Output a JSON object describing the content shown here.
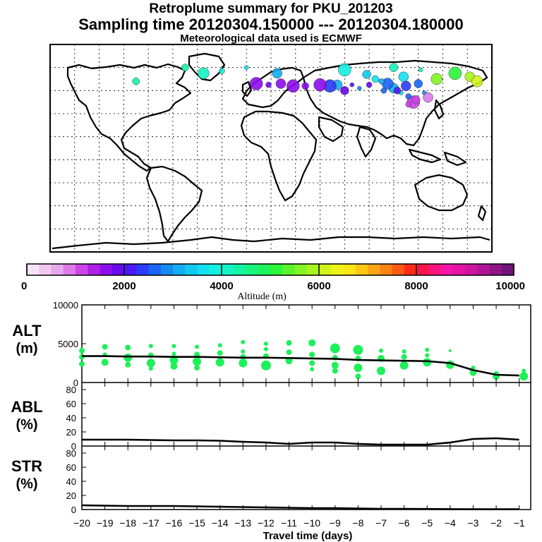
{
  "header": {
    "title": "Retroplume summary for PKU_201203",
    "sampling": "Sampling time   20120304.150000 --- 20120304.180000",
    "met": "Meteorological data used is ECMWF"
  },
  "colorbar": {
    "label": "Altitude (m)",
    "ticks": [
      "0",
      "2000",
      "4000",
      "6000",
      "8000",
      "10000"
    ],
    "range": [
      0,
      10000
    ],
    "colors": [
      "#f7e3f7",
      "#f0c8f0",
      "#e8a8ee",
      "#de7ae8",
      "#cc44e6",
      "#b01ee8",
      "#8c0eec",
      "#6a08f0",
      "#4a18f4",
      "#2a3cf6",
      "#1a64f6",
      "#148af2",
      "#12acf0",
      "#10c8f0",
      "#12e0ee",
      "#14f0e0",
      "#14f4c4",
      "#14f4a4",
      "#16f47c",
      "#1af45a",
      "#2cf43a",
      "#5af42c",
      "#82f424",
      "#aaf41e",
      "#d0f41a",
      "#eef416",
      "#fce614",
      "#fcc814",
      "#fca614",
      "#fc8214",
      "#fc5a14",
      "#fc2c18",
      "#fc1448",
      "#fc147c",
      "#f414a8",
      "#e414a8",
      "#cc14a0",
      "#b01498",
      "#901488",
      "#701478"
    ]
  },
  "chart_data": [
    {
      "type": "scatter",
      "name": "ALT",
      "ylabel": "ALT\n(m)",
      "ylabel_lines": [
        "ALT",
        "(m)"
      ],
      "ylim": [
        0,
        10000
      ],
      "yticks": [
        "10000",
        "5000",
        "0"
      ],
      "xlim": [
        -20,
        -0.5
      ],
      "median_line": {
        "x": [
          -20,
          -19,
          -18,
          -17,
          -16,
          -15,
          -14,
          -13,
          -12,
          -11,
          -10,
          -9,
          -8,
          -7,
          -6,
          -5,
          -4,
          -3,
          -2,
          -1
        ],
        "y": [
          3400,
          3400,
          3350,
          3350,
          3300,
          3300,
          3250,
          3200,
          3200,
          3150,
          3100,
          3050,
          2900,
          2850,
          2800,
          2750,
          2500,
          1600,
          1000,
          900
        ]
      },
      "points": [
        {
          "x": -20,
          "y": 4100,
          "r": 4
        },
        {
          "x": -20,
          "y": 3300,
          "r": 4
        },
        {
          "x": -20,
          "y": 2400,
          "r": 4
        },
        {
          "x": -19,
          "y": 4600,
          "r": 4
        },
        {
          "x": -19,
          "y": 3600,
          "r": 3
        },
        {
          "x": -19,
          "y": 2600,
          "r": 5
        },
        {
          "x": -18,
          "y": 4500,
          "r": 4
        },
        {
          "x": -18,
          "y": 3200,
          "r": 6
        },
        {
          "x": -18,
          "y": 2300,
          "r": 4
        },
        {
          "x": -17,
          "y": 4700,
          "r": 3
        },
        {
          "x": -17,
          "y": 3500,
          "r": 4
        },
        {
          "x": -17,
          "y": 2500,
          "r": 6
        },
        {
          "x": -17,
          "y": 1800,
          "r": 3
        },
        {
          "x": -16,
          "y": 4700,
          "r": 3
        },
        {
          "x": -16,
          "y": 3700,
          "r": 3
        },
        {
          "x": -16,
          "y": 2900,
          "r": 6
        },
        {
          "x": -16,
          "y": 2100,
          "r": 5
        },
        {
          "x": -15,
          "y": 4600,
          "r": 3
        },
        {
          "x": -15,
          "y": 3600,
          "r": 4
        },
        {
          "x": -15,
          "y": 2700,
          "r": 6
        },
        {
          "x": -15,
          "y": 1900,
          "r": 4
        },
        {
          "x": -14,
          "y": 4800,
          "r": 3
        },
        {
          "x": -14,
          "y": 3800,
          "r": 4
        },
        {
          "x": -14,
          "y": 2600,
          "r": 6
        },
        {
          "x": -13,
          "y": 5200,
          "r": 3
        },
        {
          "x": -13,
          "y": 4000,
          "r": 3
        },
        {
          "x": -13,
          "y": 3300,
          "r": 4
        },
        {
          "x": -13,
          "y": 2500,
          "r": 6
        },
        {
          "x": -12,
          "y": 5000,
          "r": 3
        },
        {
          "x": -12,
          "y": 4300,
          "r": 3
        },
        {
          "x": -12,
          "y": 3400,
          "r": 4
        },
        {
          "x": -12,
          "y": 2200,
          "r": 7
        },
        {
          "x": -11,
          "y": 5100,
          "r": 4
        },
        {
          "x": -11,
          "y": 3900,
          "r": 4
        },
        {
          "x": -11,
          "y": 2800,
          "r": 5
        },
        {
          "x": -10,
          "y": 5100,
          "r": 5
        },
        {
          "x": -10,
          "y": 3600,
          "r": 4
        },
        {
          "x": -10,
          "y": 2500,
          "r": 4
        },
        {
          "x": -10,
          "y": 1700,
          "r": 3
        },
        {
          "x": -9,
          "y": 4400,
          "r": 7
        },
        {
          "x": -9,
          "y": 3200,
          "r": 4
        },
        {
          "x": -9,
          "y": 2200,
          "r": 5
        },
        {
          "x": -9,
          "y": 1500,
          "r": 4
        },
        {
          "x": -8,
          "y": 4200,
          "r": 7
        },
        {
          "x": -8,
          "y": 3100,
          "r": 4
        },
        {
          "x": -8,
          "y": 1900,
          "r": 6
        },
        {
          "x": -8,
          "y": 800,
          "r": 4
        },
        {
          "x": -7,
          "y": 4100,
          "r": 3
        },
        {
          "x": -7,
          "y": 3100,
          "r": 5
        },
        {
          "x": -7,
          "y": 1500,
          "r": 6
        },
        {
          "x": -6,
          "y": 4000,
          "r": 3
        },
        {
          "x": -6,
          "y": 3300,
          "r": 4
        },
        {
          "x": -6,
          "y": 2200,
          "r": 6
        },
        {
          "x": -5,
          "y": 4200,
          "r": 3
        },
        {
          "x": -5,
          "y": 3500,
          "r": 3
        },
        {
          "x": -5,
          "y": 2600,
          "r": 6
        },
        {
          "x": -4,
          "y": 4100,
          "r": 2
        },
        {
          "x": -4,
          "y": 2300,
          "r": 6
        },
        {
          "x": -3,
          "y": 1900,
          "r": 3
        },
        {
          "x": -3,
          "y": 1300,
          "r": 5
        },
        {
          "x": -2,
          "y": 1100,
          "r": 4
        },
        {
          "x": -2,
          "y": 800,
          "r": 5
        },
        {
          "x": -0.8,
          "y": 1500,
          "r": 3
        },
        {
          "x": -0.8,
          "y": 800,
          "r": 6
        }
      ]
    },
    {
      "type": "line",
      "name": "ABL",
      "ylabel_lines": [
        "ABL",
        "(%)"
      ],
      "ylim": [
        0,
        90
      ],
      "yticks": [
        "80",
        "60",
        "40",
        "20",
        "0"
      ],
      "x": [
        -20,
        -19,
        -18,
        -17,
        -16,
        -15,
        -14,
        -13,
        -12,
        -11,
        -10,
        -9,
        -8,
        -7,
        -6,
        -5,
        -4,
        -3,
        -2,
        -1
      ],
      "y": [
        9,
        9,
        9,
        8.5,
        8,
        8,
        7.5,
        6,
        5,
        3,
        5,
        5,
        3,
        2,
        2,
        2,
        5,
        10,
        11,
        9
      ]
    },
    {
      "type": "line",
      "name": "STR",
      "ylabel_lines": [
        "STR",
        "(%)"
      ],
      "ylim": [
        0,
        90
      ],
      "yticks": [
        "80",
        "60",
        "40",
        "20",
        "0"
      ],
      "x": [
        -20,
        -19,
        -18,
        -17,
        -16,
        -15,
        -14,
        -13,
        -12,
        -11,
        -10,
        -9,
        -8,
        -7,
        -6,
        -5,
        -4,
        -3,
        -2,
        -1
      ],
      "y": [
        6,
        5.5,
        5,
        5,
        5,
        4.5,
        4,
        3.5,
        3,
        2.5,
        2,
        2,
        1.5,
        1,
        1,
        0.8,
        0.6,
        0.5,
        0.5,
        0.5
      ]
    },
    {
      "type": "scatter",
      "name": "map-plume",
      "xlim": [
        -180,
        180
      ],
      "ylim": [
        -90,
        90
      ],
      "points": [
        {
          "lon": 116,
          "lat": 40,
          "alt": 1000
        },
        {
          "lon": 118,
          "lat": 42,
          "alt": 1200
        },
        {
          "lon": 112,
          "lat": 45,
          "alt": 2500
        },
        {
          "lon": 106,
          "lat": 48,
          "alt": 3500
        },
        {
          "lon": 100,
          "lat": 52,
          "alt": 3000
        },
        {
          "lon": 95,
          "lat": 56,
          "alt": 2700
        },
        {
          "lon": 90,
          "lat": 58,
          "alt": 3200
        },
        {
          "lon": 85,
          "lat": 60,
          "alt": 3600
        },
        {
          "lon": 110,
          "lat": 54,
          "alt": 2300
        },
        {
          "lon": 120,
          "lat": 56,
          "alt": 2600
        },
        {
          "lon": 103,
          "lat": 50,
          "alt": 2200
        },
        {
          "lon": 92,
          "lat": 50,
          "alt": 2500
        },
        {
          "lon": 80,
          "lat": 55,
          "alt": 1800
        },
        {
          "lon": 72,
          "lat": 52,
          "alt": 2800
        },
        {
          "lon": 66,
          "lat": 55,
          "alt": 2100
        },
        {
          "lon": 60,
          "lat": 50,
          "alt": 1900
        },
        {
          "lon": 54,
          "lat": 55,
          "alt": 3000
        },
        {
          "lon": 48,
          "lat": 54,
          "alt": 2400
        },
        {
          "lon": 40,
          "lat": 55,
          "alt": 1700
        },
        {
          "lon": 28,
          "lat": 54,
          "alt": 1500
        },
        {
          "lon": 18,
          "lat": 54,
          "alt": 1700
        },
        {
          "lon": 8,
          "lat": 56,
          "alt": 1600
        },
        {
          "lon": -2,
          "lat": 55,
          "alt": 1800
        },
        {
          "lon": -12,
          "lat": 56,
          "alt": 1700
        },
        {
          "lon": 5,
          "lat": 65,
          "alt": 3000
        },
        {
          "lon": -20,
          "lat": 70,
          "alt": 3500
        },
        {
          "lon": 60,
          "lat": 68,
          "alt": 3800
        },
        {
          "lon": 100,
          "lat": 70,
          "alt": 4000
        },
        {
          "lon": 122,
          "lat": 68,
          "alt": 4200
        },
        {
          "lon": 135,
          "lat": 60,
          "alt": 5500
        },
        {
          "lon": 150,
          "lat": 65,
          "alt": 5200
        },
        {
          "lon": 162,
          "lat": 62,
          "alt": 5800
        },
        {
          "lon": 168,
          "lat": 58,
          "alt": 6200
        },
        {
          "lon": -70,
          "lat": 70,
          "alt": 4300
        },
        {
          "lon": -55,
          "lat": 65,
          "alt": 4100
        },
        {
          "lon": -40,
          "lat": 67,
          "alt": 3900
        },
        {
          "lon": -110,
          "lat": 58,
          "alt": 4300
        },
        {
          "lon": 125,
          "lat": 48,
          "alt": 2800
        },
        {
          "lon": 128,
          "lat": 44,
          "alt": 900
        },
        {
          "lon": 112,
          "lat": 38,
          "alt": 1100
        },
        {
          "lon": 108,
          "lat": 62,
          "alt": 3700
        },
        {
          "lon": 78,
          "lat": 64,
          "alt": 3300
        }
      ]
    }
  ],
  "x_axis": {
    "ticks": [
      "−20",
      "−19",
      "−18",
      "−17",
      "−16",
      "−15",
      "−14",
      "−13",
      "−12",
      "−11",
      "−10",
      "−9",
      "−8",
      "−7",
      "−6",
      "−5",
      "−4",
      "−3",
      "−2",
      "−1"
    ],
    "label": "Travel time (days)"
  }
}
